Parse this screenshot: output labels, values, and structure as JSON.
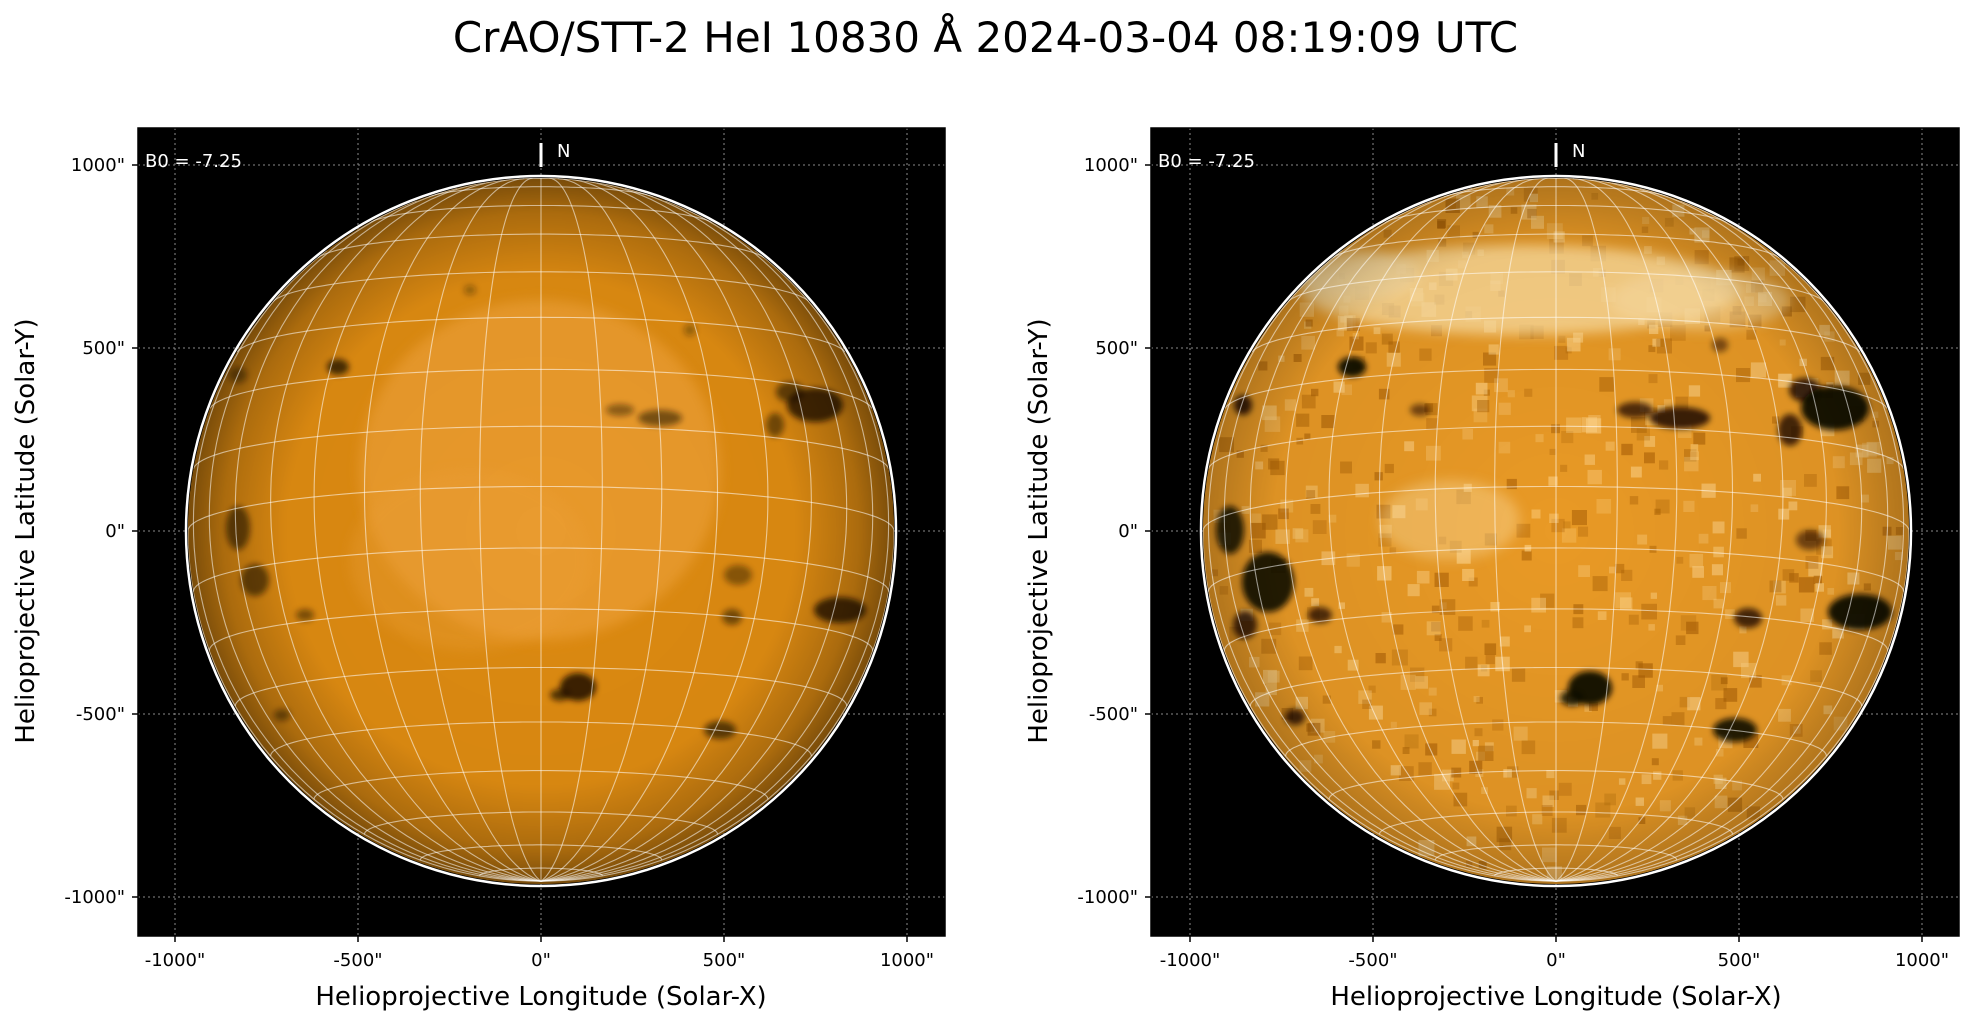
{
  "figure": {
    "title": "CrAO/STT-2 HeI 10830 Å 2024-03-04 08:19:09 UTC"
  },
  "panels": [
    {
      "id": "left",
      "b0_label": "B0 = -7.25",
      "north_label": "N",
      "xlabel": "Helioprojective Longitude (Solar-X)",
      "ylabel": "Helioprojective Latitude (Solar-Y)",
      "xticks": [
        "-1000\"",
        "-500\"",
        "0\"",
        "500\"",
        "1000\""
      ],
      "yticks": [
        "1000\"",
        "500\"",
        "0\"",
        "-500\"",
        "-1000\""
      ],
      "contrast": "normal"
    },
    {
      "id": "right",
      "b0_label": "B0 = -7.25",
      "north_label": "N",
      "xlabel": "Helioprojective Longitude (Solar-X)",
      "ylabel": "Helioprojective Latitude (Solar-Y)",
      "xticks": [
        "-1000\"",
        "-500\"",
        "0\"",
        "500\"",
        "1000\""
      ],
      "yticks": [
        "1000\"",
        "500\"",
        "0\"",
        "-500\"",
        "-1000\""
      ],
      "contrast": "enhanced"
    }
  ],
  "colors": {
    "sun_base": "#e08a10",
    "sun_bright": "#ffc766",
    "sky": "#000000",
    "grid": "#ffffff"
  }
}
